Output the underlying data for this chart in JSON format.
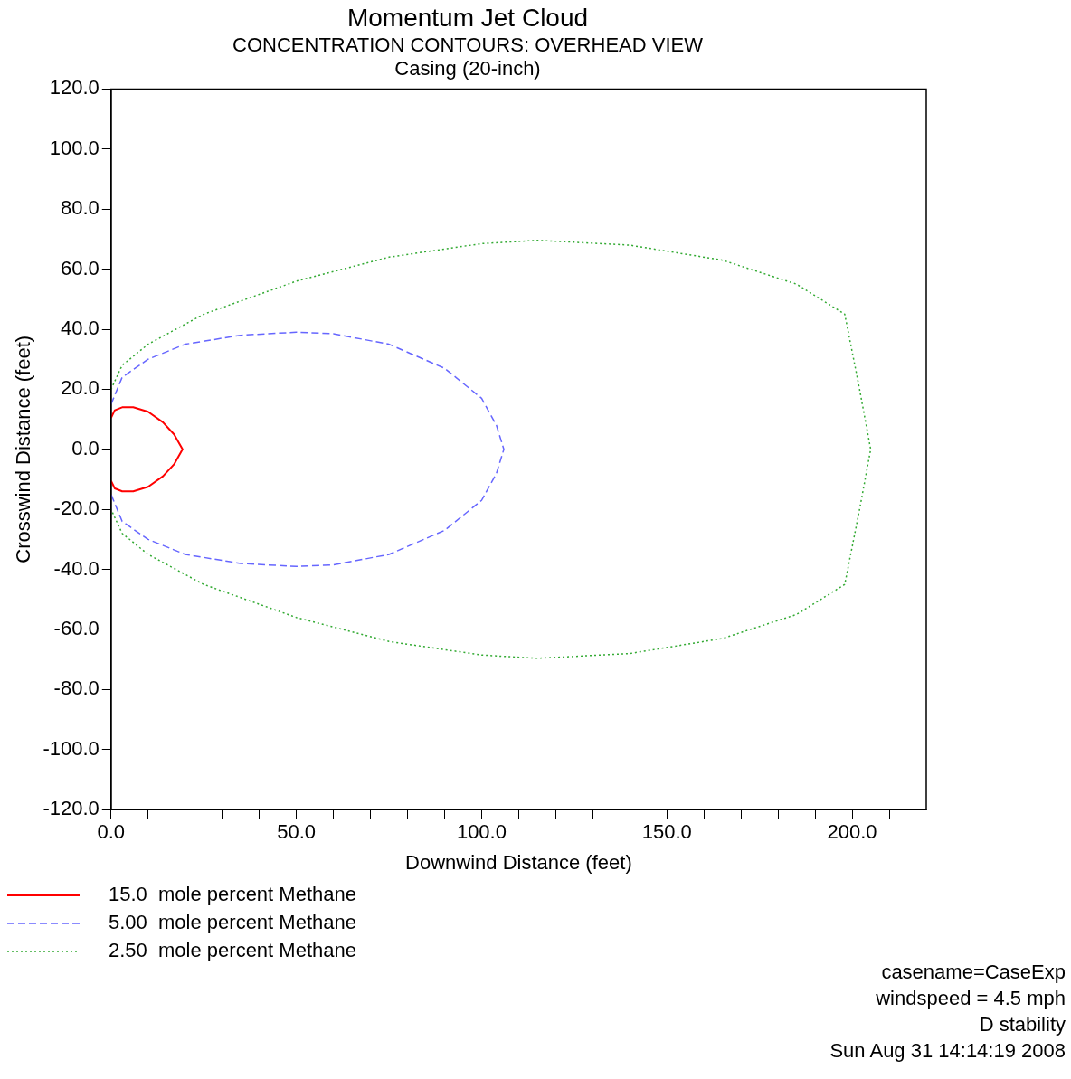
{
  "chart_data": {
    "type": "line",
    "title": "Momentum Jet Cloud",
    "subtitle": "CONCENTRATION CONTOURS: OVERHEAD VIEW\nCasing (20-inch)",
    "xlabel": "Downwind Distance (feet)",
    "ylabel": "Crosswind Distance (feet)",
    "xlim": [
      0,
      220
    ],
    "xticks": [
      {
        "value": 0,
        "label": "0.0"
      },
      {
        "value": 10,
        "label": null
      },
      {
        "value": 20,
        "label": null
      },
      {
        "value": 30,
        "label": null
      },
      {
        "value": 40,
        "label": null
      },
      {
        "value": 50,
        "label": "50.0"
      },
      {
        "value": 60,
        "label": null
      },
      {
        "value": 70,
        "label": null
      },
      {
        "value": 80,
        "label": null
      },
      {
        "value": 90,
        "label": null
      },
      {
        "value": 100,
        "label": "100.0"
      },
      {
        "value": 110,
        "label": null
      },
      {
        "value": 120,
        "label": null
      },
      {
        "value": 130,
        "label": null
      },
      {
        "value": 140,
        "label": null
      },
      {
        "value": 150,
        "label": "150.0"
      },
      {
        "value": 160,
        "label": null
      },
      {
        "value": 170,
        "label": null
      },
      {
        "value": 180,
        "label": null
      },
      {
        "value": 190,
        "label": null
      },
      {
        "value": 200,
        "label": "200.0"
      },
      {
        "value": 210,
        "label": null
      }
    ],
    "ylim": [
      -120,
      120
    ],
    "yticks": [
      {
        "value": -120,
        "label": "-120.0"
      },
      {
        "value": -100,
        "label": "-100.0"
      },
      {
        "value": -80,
        "label": "-80.0"
      },
      {
        "value": -60,
        "label": "-60.0"
      },
      {
        "value": -40,
        "label": "-40.0"
      },
      {
        "value": -20,
        "label": "-20.0"
      },
      {
        "value": 0,
        "label": "0.0"
      },
      {
        "value": 20,
        "label": "20.0"
      },
      {
        "value": 40,
        "label": "40.0"
      },
      {
        "value": 60,
        "label": "60.0"
      },
      {
        "value": 80,
        "label": "80.0"
      },
      {
        "value": 100,
        "label": "100.0"
      },
      {
        "value": 120,
        "label": "120.0"
      }
    ],
    "grid": false,
    "legend": "bottom left",
    "marker": "none",
    "series": [
      {
        "name": "15.0  mole percent Methane",
        "color": "#ff0000",
        "line_style": "solid",
        "x": [
          0,
          1,
          3,
          6,
          10,
          14,
          17,
          19.3,
          17,
          14,
          10,
          6,
          3,
          1,
          0
        ],
        "values": [
          10.5,
          13,
          14,
          14,
          12.5,
          9,
          5,
          0,
          -5,
          -9,
          -12.5,
          -14,
          -14,
          -13,
          -10.5
        ]
      },
      {
        "name": "5.00  mole percent Methane",
        "color": "#6666ff",
        "line_style": "dashed",
        "x": [
          0,
          3,
          10,
          20,
          35,
          50,
          60,
          75,
          90,
          100,
          104,
          106,
          104,
          100,
          90,
          75,
          60,
          50,
          35,
          20,
          10,
          3,
          0
        ],
        "values": [
          15,
          24,
          30,
          35,
          38,
          39,
          38.5,
          35,
          27,
          17,
          8,
          0,
          -8,
          -17,
          -27,
          -35,
          -38.5,
          -39,
          -38,
          -35,
          -30,
          -24,
          -15
        ]
      },
      {
        "name": "2.50  mole percent Methane",
        "color": "#33aa33",
        "line_style": "dotted",
        "x": [
          0,
          3,
          10,
          25,
          50,
          75,
          100,
          115,
          140,
          165,
          185,
          198,
          202,
          205,
          202,
          198,
          185,
          165,
          140,
          115,
          100,
          75,
          50,
          25,
          10,
          3,
          0
        ],
        "values": [
          20,
          28,
          35,
          45,
          56,
          64,
          68.5,
          69.6,
          68,
          63,
          55,
          45,
          20,
          0,
          -20,
          -45,
          -55,
          -63,
          -68,
          -69.6,
          -68.5,
          -64,
          -56,
          -45,
          -35,
          -28,
          -20
        ]
      }
    ],
    "annotations": [
      "casename=CaseExp",
      "windspeed =  4.5 mph",
      "D stability",
      "Sun Aug 31 14:14:19 2008"
    ]
  }
}
